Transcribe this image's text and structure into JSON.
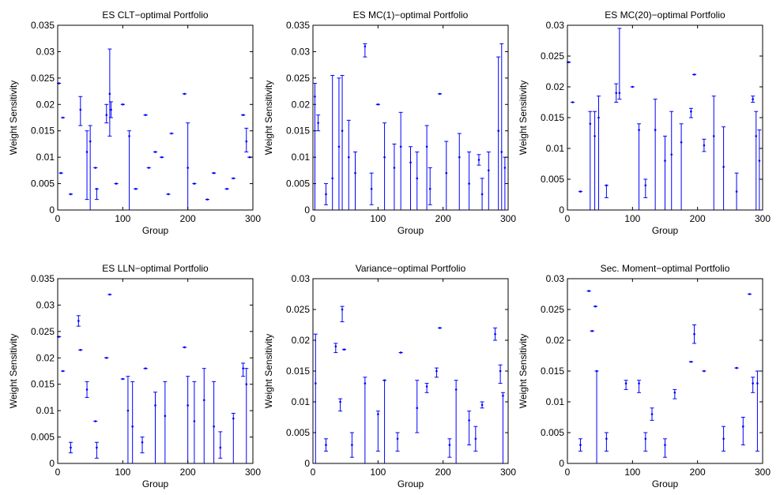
{
  "chart_data": [
    {
      "type": "errorbar",
      "title": "ES CLT−optimal Portfolio",
      "xlabel": "Group",
      "ylabel": "Weight Sensitivity",
      "color": "#0000ff",
      "xlim": [
        0,
        300
      ],
      "xticks": [
        0,
        100,
        200,
        300
      ],
      "ylim": [
        0,
        0.035
      ],
      "yticks": [
        0,
        0.005,
        0.01,
        0.015,
        0.02,
        0.025,
        0.03,
        0.035
      ],
      "x": [
        2,
        8,
        5,
        35,
        45,
        50,
        58,
        75,
        80,
        82,
        100,
        110,
        135,
        150,
        160,
        175,
        195,
        200,
        210,
        240,
        285,
        290,
        295,
        20,
        60,
        120,
        170,
        230,
        260,
        270,
        140,
        90
      ],
      "values": [
        0.024,
        0.0175,
        0.007,
        0.019,
        0.011,
        0.013,
        0.008,
        0.018,
        0.022,
        0.019,
        0.02,
        0.014,
        0.018,
        0.011,
        0.01,
        0.0145,
        0.022,
        0.008,
        0.005,
        0.007,
        0.018,
        0.013,
        0.01,
        0.003,
        0.004,
        0.004,
        0.003,
        0.002,
        0.004,
        0.006,
        0.008,
        0.005
      ],
      "lower": [
        0.024,
        0.0175,
        0.007,
        0.016,
        0.002,
        0,
        0.008,
        0.0165,
        0.014,
        0.0175,
        0.02,
        0,
        0.018,
        0.011,
        0.01,
        0.0145,
        0.022,
        0,
        0.005,
        0.007,
        0.018,
        0.011,
        0.01,
        0.003,
        0.002,
        0.004,
        0.003,
        0.002,
        0.004,
        0.006,
        0.008,
        0.005
      ],
      "upper": [
        0.024,
        0.0175,
        0.007,
        0.0215,
        0.015,
        0.016,
        0.008,
        0.02,
        0.0305,
        0.0205,
        0.02,
        0.015,
        0.018,
        0.011,
        0.01,
        0.0145,
        0.022,
        0.0165,
        0.005,
        0.007,
        0.018,
        0.0155,
        0.01,
        0.003,
        0.004,
        0.004,
        0.003,
        0.002,
        0.004,
        0.006,
        0.008,
        0.005
      ]
    },
    {
      "type": "errorbar",
      "title": "ES MC(1)−optimal Portfolio",
      "xlabel": "Group",
      "ylabel": "Weight Sensitivity",
      "color": "#0000ff",
      "xlim": [
        0,
        300
      ],
      "xticks": [
        0,
        100,
        200,
        300
      ],
      "ylim": [
        0,
        0.035
      ],
      "yticks": [
        0,
        0.005,
        0.01,
        0.015,
        0.02,
        0.025,
        0.03,
        0.035
      ],
      "x": [
        3,
        8,
        30,
        40,
        45,
        55,
        65,
        80,
        100,
        110,
        125,
        135,
        150,
        160,
        175,
        195,
        205,
        225,
        240,
        255,
        270,
        285,
        290,
        295,
        20,
        90,
        180,
        260
      ],
      "values": [
        0.0215,
        0.0165,
        0.006,
        0.012,
        0.015,
        0.01,
        0.007,
        0.031,
        0.02,
        0.01,
        0.008,
        0.012,
        0.009,
        0.006,
        0.012,
        0.022,
        0.007,
        0.01,
        0.005,
        0.0095,
        0.0075,
        0.015,
        0.011,
        0.008,
        0.003,
        0.004,
        0.004,
        0.003
      ],
      "lower": [
        0,
        0.015,
        0,
        0,
        0,
        0,
        0,
        0.029,
        0.02,
        0,
        0,
        0,
        0,
        0,
        0,
        0.022,
        0,
        0,
        0,
        0.0085,
        0,
        0,
        0,
        0,
        0.001,
        0.001,
        0.001,
        0
      ],
      "upper": [
        0.024,
        0.018,
        0.0255,
        0.025,
        0.0255,
        0.017,
        0.011,
        0.0315,
        0.02,
        0.0165,
        0.0125,
        0.0185,
        0.012,
        0.011,
        0.016,
        0.022,
        0.013,
        0.0145,
        0.011,
        0.0105,
        0.011,
        0.029,
        0.0315,
        0.01,
        0.005,
        0.007,
        0.008,
        0.006
      ]
    },
    {
      "type": "errorbar",
      "title": "ES MC(20)−optimal Portfolio",
      "xlabel": "Group",
      "ylabel": "Weight Sensitivity",
      "color": "#0000ff",
      "xlim": [
        0,
        300
      ],
      "xticks": [
        0,
        100,
        200,
        300
      ],
      "ylim": [
        0,
        0.03
      ],
      "yticks": [
        0,
        0.005,
        0.01,
        0.015,
        0.02,
        0.025,
        0.03
      ],
      "x": [
        2,
        8,
        35,
        42,
        48,
        75,
        80,
        100,
        110,
        135,
        150,
        160,
        175,
        190,
        195,
        210,
        225,
        240,
        285,
        290,
        295,
        20,
        60,
        120,
        260
      ],
      "values": [
        0.024,
        0.0175,
        0.014,
        0.012,
        0.015,
        0.019,
        0.019,
        0.02,
        0.013,
        0.013,
        0.008,
        0.009,
        0.011,
        0.016,
        0.022,
        0.0105,
        0.012,
        0.007,
        0.018,
        0.012,
        0.008,
        0.003,
        0.004,
        0.004,
        0.003
      ],
      "lower": [
        0.024,
        0.0175,
        0,
        0,
        0,
        0.0175,
        0.018,
        0.02,
        0,
        0,
        0,
        0,
        0,
        0.015,
        0.022,
        0.0095,
        0,
        0,
        0.0175,
        0,
        0,
        0.003,
        0.002,
        0.002,
        0
      ],
      "upper": [
        0.024,
        0.0175,
        0.016,
        0.016,
        0.0185,
        0.0205,
        0.0295,
        0.02,
        0.014,
        0.018,
        0.012,
        0.016,
        0.014,
        0.0165,
        0.022,
        0.0115,
        0.0185,
        0.0135,
        0.0185,
        0.016,
        0.013,
        0.003,
        0.004,
        0.005,
        0.006
      ]
    },
    {
      "type": "errorbar",
      "title": "ES LLN−optimal Portfolio",
      "xlabel": "Group",
      "ylabel": "Weight Sensitivity",
      "color": "#0000ff",
      "xlim": [
        0,
        300
      ],
      "xticks": [
        0,
        100,
        200,
        300
      ],
      "ylim": [
        0,
        0.035
      ],
      "yticks": [
        0,
        0.005,
        0.01,
        0.015,
        0.02,
        0.025,
        0.03,
        0.035
      ],
      "x": [
        2,
        8,
        32,
        35,
        45,
        58,
        75,
        80,
        100,
        108,
        115,
        135,
        150,
        165,
        195,
        200,
        210,
        225,
        240,
        270,
        285,
        290,
        20,
        60,
        130,
        250
      ],
      "values": [
        0.024,
        0.0175,
        0.027,
        0.0215,
        0.014,
        0.008,
        0.02,
        0.032,
        0.016,
        0.01,
        0.007,
        0.018,
        0.011,
        0.009,
        0.022,
        0.011,
        0.008,
        0.012,
        0.007,
        0.0085,
        0.018,
        0.015,
        0.003,
        0.003,
        0.004,
        0.003
      ],
      "lower": [
        0.024,
        0.0175,
        0.026,
        0.0215,
        0.0125,
        0.008,
        0.02,
        0.032,
        0.016,
        0,
        0,
        0.018,
        0,
        0,
        0.022,
        0,
        0,
        0,
        0,
        0,
        0.0165,
        0,
        0.002,
        0.001,
        0.002,
        0.001
      ],
      "upper": [
        0.024,
        0.0175,
        0.028,
        0.0215,
        0.0155,
        0.008,
        0.02,
        0.032,
        0.016,
        0.0165,
        0.0155,
        0.018,
        0.0135,
        0.0155,
        0.022,
        0.0165,
        0.0155,
        0.018,
        0.0155,
        0.0095,
        0.019,
        0.018,
        0.004,
        0.004,
        0.005,
        0.006
      ]
    },
    {
      "type": "errorbar",
      "title": "Variance−optimal Portfolio",
      "xlabel": "Group",
      "ylabel": "Weight Sensitivity",
      "color": "#0000ff",
      "xlim": [
        0,
        300
      ],
      "xticks": [
        0,
        100,
        200,
        300
      ],
      "ylim": [
        0,
        0.03
      ],
      "yticks": [
        0,
        0.005,
        0.01,
        0.015,
        0.02,
        0.025,
        0.03
      ],
      "x": [
        4,
        35,
        42,
        45,
        48,
        80,
        100,
        110,
        135,
        160,
        175,
        190,
        195,
        220,
        240,
        260,
        280,
        288,
        292,
        20,
        60,
        130,
        210,
        250
      ],
      "values": [
        0.013,
        0.019,
        0.01,
        0.025,
        0.0185,
        0.013,
        0.008,
        0.0135,
        0.018,
        0.009,
        0.0125,
        0.015,
        0.022,
        0.012,
        0.007,
        0.0095,
        0.021,
        0.015,
        0.011,
        0.003,
        0.003,
        0.004,
        0.003,
        0.004
      ],
      "lower": [
        0,
        0.018,
        0.0085,
        0.023,
        0.0185,
        0,
        0.002,
        0,
        0.018,
        0.005,
        0.0115,
        0.014,
        0.022,
        0,
        0.003,
        0.009,
        0.02,
        0.013,
        0,
        0.002,
        0.001,
        0.002,
        0.001,
        0.002
      ],
      "upper": [
        0.021,
        0.0195,
        0.0105,
        0.0255,
        0.0185,
        0.014,
        0.0085,
        0.0135,
        0.018,
        0.0135,
        0.013,
        0.0155,
        0.022,
        0.0135,
        0.0085,
        0.01,
        0.022,
        0.016,
        0.0115,
        0.004,
        0.005,
        0.005,
        0.004,
        0.006
      ]
    },
    {
      "type": "errorbar",
      "title": "Sec. Moment−optimal Portfolio",
      "xlabel": "Group",
      "ylabel": "Weight Sensitivity",
      "color": "#0000ff",
      "xlim": [
        0,
        300
      ],
      "xticks": [
        0,
        100,
        200,
        300
      ],
      "ylim": [
        0,
        0.03
      ],
      "yticks": [
        0,
        0.005,
        0.01,
        0.015,
        0.02,
        0.025,
        0.03
      ],
      "x": [
        33,
        38,
        43,
        45,
        90,
        110,
        130,
        165,
        190,
        195,
        210,
        260,
        280,
        285,
        292,
        20,
        60,
        120,
        150,
        240,
        270
      ],
      "values": [
        0.028,
        0.0215,
        0.0255,
        0.015,
        0.013,
        0.013,
        0.008,
        0.0115,
        0.0165,
        0.021,
        0.015,
        0.0155,
        0.0275,
        0.013,
        0.013,
        0.003,
        0.004,
        0.004,
        0.003,
        0.004,
        0.006
      ],
      "lower": [
        0.028,
        0.0215,
        0.0255,
        0,
        0.012,
        0.0115,
        0.007,
        0.0105,
        0.0165,
        0.0195,
        0.015,
        0.0155,
        0.0275,
        0.0115,
        0.002,
        0.002,
        0.002,
        0.002,
        0.001,
        0.002,
        0.003
      ],
      "upper": [
        0.028,
        0.0215,
        0.0255,
        0.015,
        0.0135,
        0.0135,
        0.009,
        0.012,
        0.0165,
        0.0225,
        0.015,
        0.0155,
        0.0275,
        0.014,
        0.015,
        0.004,
        0.005,
        0.005,
        0.004,
        0.006,
        0.0075
      ]
    }
  ]
}
